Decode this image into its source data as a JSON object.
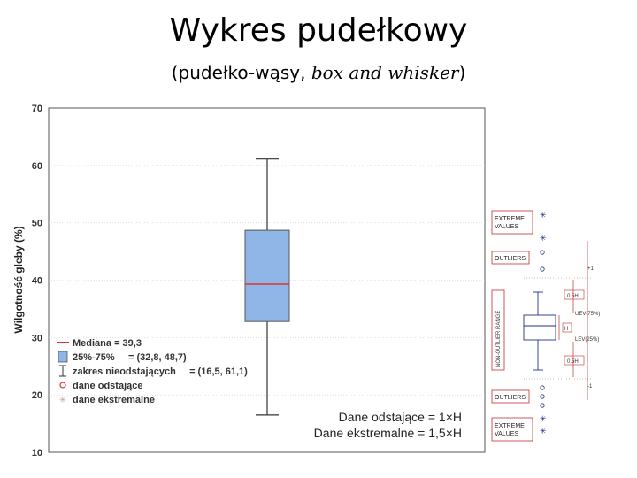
{
  "header": {
    "title": "Wykres pudełkowy",
    "subtitle_plain": "(pudełko-wąsy, ",
    "subtitle_italic": "box and whisker",
    "subtitle_end": ")"
  },
  "chart_data": {
    "type": "boxplot",
    "ylabel": "Wilgotność gleby (%)",
    "ylim": [
      10,
      70
    ],
    "yticks": [
      "10",
      "20",
      "30",
      "40",
      "50",
      "60",
      "70"
    ],
    "box": {
      "median": 39.3,
      "q1": 32.8,
      "q3": 48.7,
      "whisker_low": 16.5,
      "whisker_high": 61.1
    },
    "legend_position": "bottom-left",
    "legend": [
      {
        "label": "Mediana = 39,3",
        "marker": "line",
        "color": "#e03030"
      },
      {
        "label": "25%-75%     = (32,8, 48,7)",
        "marker": "box",
        "color": "#8fb6e6"
      },
      {
        "label": "zakres nieodstających     = (16,5, 61,1)",
        "marker": "whisker",
        "color": "#000000"
      },
      {
        "label": "dane odstające",
        "marker": "circle",
        "color": "#e03030"
      },
      {
        "label": "dane ekstremalne",
        "marker": "star",
        "color": "#d0a0a0"
      }
    ],
    "annotations": [
      "Dane odstające = 1×H",
      "Dane ekstremalne = 1,5×H"
    ],
    "colors": {
      "box_fill": "#8fb6e6",
      "box_stroke": "#555555",
      "median": "#e03030",
      "grid": "#cccccc"
    }
  },
  "diagram": {
    "extreme_top": "EXTREME\nVALUES",
    "outliers_top": "OUTLIERS",
    "non_outlier_range": "NON-OUTLIER RANGE",
    "outliers_bottom": "OUTLIERS",
    "extreme_bottom": "EXTREME\nVALUES",
    "plus_1": "+1",
    "plus_05h": "0.5H",
    "h": "H",
    "minus_05h": "0.5H",
    "minus_1": "-1",
    "uev": "UEV(75%)",
    "lev": "LEV(25%)"
  }
}
